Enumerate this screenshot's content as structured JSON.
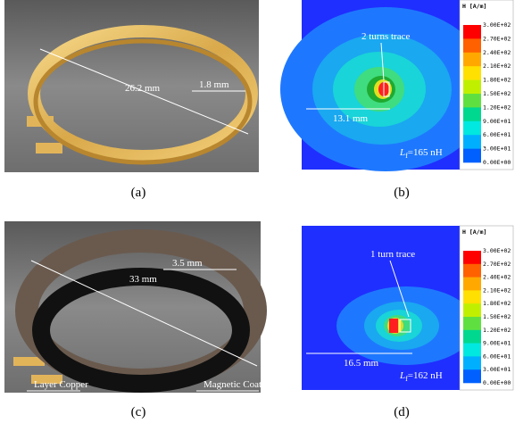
{
  "panels": [
    {
      "label": "(a)",
      "annotations": [
        "26.2 mm",
        "1.8 mm"
      ]
    },
    {
      "label": "(b)",
      "trace": "2 turns trace",
      "length": "13.1 mm",
      "inductance": {
        "symbol": "L",
        "subscript": "f",
        "value": "=165 nH"
      },
      "colorbar": {
        "title": "H [A/m]",
        "labels": [
          "3.00E+02",
          "2.70E+02",
          "2.40E+02",
          "2.10E+02",
          "1.80E+02",
          "1.50E+02",
          "1.20E+02",
          "9.00E+01",
          "6.00E+01",
          "3.00E+01",
          "0.00E+00"
        ]
      }
    },
    {
      "label": "(c)",
      "annotations": [
        "33 mm",
        "3.5 mm",
        "Layer Copper",
        "Magnetic Coat"
      ]
    },
    {
      "label": "(d)",
      "trace": "1 turn trace",
      "length": "16.5 mm",
      "inductance": {
        "symbol": "L",
        "subscript": "f",
        "value": "=162 nH"
      },
      "colorbar": {
        "title": "H [A/m]",
        "labels": [
          "3.00E+02",
          "2.70E+02",
          "2.40E+02",
          "2.10E+02",
          "1.80E+02",
          "1.50E+02",
          "1.20E+02",
          "9.00E+01",
          "6.00E+01",
          "3.00E+01",
          "0.00E+00"
        ]
      }
    }
  ]
}
